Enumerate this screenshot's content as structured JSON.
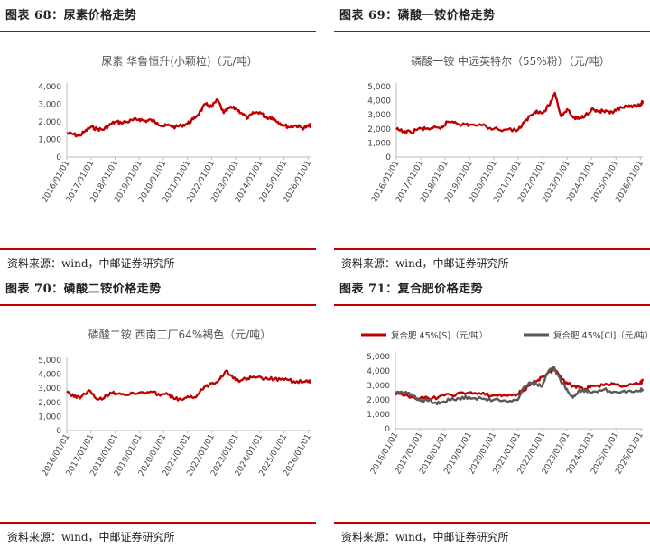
{
  "panels": [
    {
      "heading": "图表 68：尿素价格走势",
      "source": "资料来源：wind，中邮证券研究所"
    },
    {
      "heading": "图表 69：磷酸一铵价格走势",
      "source": "资料来源：wind，中邮证券研究所"
    },
    {
      "heading": "图表 70：磷酸二铵价格走势",
      "source": "资料来源：wind，中邮证券研究所"
    },
    {
      "heading": "图表 71：复合肥价格走势",
      "source": "资料来源：wind，中邮证券研究所"
    }
  ],
  "chart_data": [
    {
      "type": "line",
      "title": "尿素 华鲁恒升(小颗粒)（元/吨）",
      "xlabel": "",
      "ylabel": "",
      "ylim": [
        0,
        4000
      ],
      "yticks": [
        "0",
        "1,000",
        "2,000",
        "3,000",
        "4,000"
      ],
      "xticks": [
        "2016/01/01",
        "2017/01/01",
        "2018/01/01",
        "2019/01/01",
        "2020/01/01",
        "2021/01/01",
        "2022/01/01",
        "2023/01/01",
        "2024/01/01",
        "2025/01/01",
        "2026/01/01"
      ],
      "grid": false,
      "series": [
        {
          "color": "#c00000",
          "x": [
            2016.0,
            2016.25,
            2016.5,
            2016.75,
            2017.0,
            2017.25,
            2017.5,
            2017.75,
            2018.0,
            2018.25,
            2018.5,
            2018.75,
            2019.0,
            2019.25,
            2019.5,
            2019.75,
            2020.0,
            2020.25,
            2020.5,
            2020.75,
            2021.0,
            2021.25,
            2021.5,
            2021.75,
            2022.0,
            2022.25,
            2022.5,
            2022.75,
            2023.0,
            2023.25,
            2023.5,
            2023.75,
            2024.0,
            2024.25,
            2024.5,
            2024.75,
            2025.0,
            2025.25,
            2025.5,
            2025.75,
            2026.0,
            2026.1
          ],
          "values": [
            1350,
            1300,
            1200,
            1450,
            1700,
            1600,
            1550,
            1800,
            2000,
            1950,
            2000,
            2100,
            2150,
            2050,
            2100,
            1950,
            1750,
            1800,
            1700,
            1800,
            1900,
            2150,
            2550,
            3000,
            2850,
            3250,
            2500,
            2800,
            2750,
            2500,
            2200,
            2500,
            2550,
            2250,
            2250,
            2000,
            1800,
            1700,
            1800,
            1650,
            1750,
            1800
          ]
        }
      ]
    },
    {
      "type": "line",
      "title": "磷酸一铵 中远英特尔（55%粉）（元/吨）",
      "xlabel": "",
      "ylabel": "",
      "ylim": [
        0,
        5000
      ],
      "yticks": [
        "0",
        "1,000",
        "2,000",
        "3,000",
        "4,000",
        "5,000"
      ],
      "xticks": [
        "2016/01/01",
        "2017/01/01",
        "2018/01/01",
        "2019/01/01",
        "2020/01/01",
        "2021/01/01",
        "2022/01/01",
        "2023/01/01",
        "2024/01/01",
        "2025/01/01",
        "2026/01/01"
      ],
      "grid": false,
      "series": [
        {
          "color": "#c00000",
          "x": [
            2016.0,
            2016.3,
            2016.6,
            2016.9,
            2017.2,
            2017.5,
            2017.8,
            2018.1,
            2018.4,
            2018.7,
            2019.0,
            2019.5,
            2020.0,
            2020.5,
            2021.0,
            2021.25,
            2021.5,
            2021.75,
            2022.0,
            2022.25,
            2022.5,
            2022.75,
            2023.0,
            2023.25,
            2023.5,
            2023.75,
            2024.0,
            2024.25,
            2024.5,
            2024.75,
            2025.0,
            2025.25,
            2025.5,
            2025.75,
            2026.0,
            2026.1
          ],
          "values": [
            1950,
            1800,
            1750,
            2000,
            2000,
            2050,
            2000,
            2500,
            2500,
            2300,
            2300,
            2250,
            2000,
            1950,
            1950,
            2450,
            2950,
            3300,
            3100,
            3650,
            4550,
            2900,
            3400,
            2800,
            2700,
            3000,
            3400,
            3250,
            3250,
            3100,
            3300,
            3500,
            3550,
            3700,
            3600,
            4000
          ]
        }
      ]
    },
    {
      "type": "line",
      "title": "磷酸二铵 西南工厂64%褐色（元/吨）",
      "xlabel": "",
      "ylabel": "",
      "ylim": [
        0,
        5000
      ],
      "yticks": [
        "0",
        "1,000",
        "2,000",
        "3,000",
        "4,000",
        "5,000"
      ],
      "xticks": [
        "2016/01/01",
        "2017/01/01",
        "2018/01/01",
        "2019/01/01",
        "2020/01/01",
        "2021/01/01",
        "2022/01/01",
        "2023/01/01",
        "2024/01/01",
        "2025/01/01",
        "2026/01/01"
      ],
      "grid": false,
      "series": [
        {
          "color": "#c00000",
          "x": [
            2016.0,
            2016.3,
            2016.6,
            2016.9,
            2017.2,
            2017.5,
            2017.8,
            2018.2,
            2018.6,
            2019.0,
            2019.4,
            2019.8,
            2020.2,
            2020.5,
            2020.8,
            2021.1,
            2021.4,
            2021.7,
            2022.0,
            2022.3,
            2022.6,
            2022.9,
            2023.2,
            2023.5,
            2023.8,
            2024.2,
            2024.6,
            2025.0,
            2025.4,
            2025.8,
            2026.0,
            2026.1
          ],
          "values": [
            2800,
            2400,
            2400,
            2850,
            2300,
            2250,
            2700,
            2650,
            2550,
            2700,
            2700,
            2600,
            2550,
            2250,
            2200,
            2350,
            2500,
            3100,
            3350,
            3600,
            4250,
            3700,
            3550,
            3700,
            3750,
            3700,
            3650,
            3600,
            3500,
            3450,
            3450,
            3500
          ]
        }
      ]
    },
    {
      "type": "line",
      "title": "",
      "xlabel": "",
      "ylabel": "",
      "ylim": [
        0,
        5000
      ],
      "yticks": [
        "0",
        "1,000",
        "2,000",
        "3,000",
        "4,000",
        "5,000"
      ],
      "xticks": [
        "2016/01/01",
        "2017/01/01",
        "2018/01/01",
        "2019/01/01",
        "2020/01/01",
        "2021/01/01",
        "2022/01/01",
        "2023/01/01",
        "2024/01/01",
        "2025/01/01",
        "2026/01/01"
      ],
      "grid": false,
      "legend": "top",
      "series": [
        {
          "name": "复合肥 45%[S]（元/吨）",
          "color": "#c00000",
          "x": [
            2016.0,
            2016.5,
            2017.0,
            2017.5,
            2018.0,
            2018.5,
            2019.0,
            2019.5,
            2020.0,
            2020.5,
            2021.0,
            2021.25,
            2021.5,
            2021.75,
            2022.0,
            2022.25,
            2022.5,
            2022.75,
            2023.0,
            2023.25,
            2023.5,
            2023.75,
            2024.0,
            2024.5,
            2025.0,
            2025.5,
            2026.0,
            2026.1
          ],
          "values": [
            2350,
            2300,
            2100,
            2100,
            2300,
            2400,
            2500,
            2400,
            2300,
            2300,
            2400,
            2700,
            3000,
            3300,
            3600,
            3900,
            4100,
            3600,
            3200,
            2950,
            2900,
            2750,
            3000,
            3000,
            3050,
            3000,
            3150,
            3300
          ]
        },
        {
          "name": "复合肥 45%[Cl]（元/吨）",
          "color": "#595959",
          "x": [
            2016.0,
            2016.5,
            2016.7,
            2017.0,
            2017.3,
            2017.6,
            2017.9,
            2018.2,
            2018.6,
            2019.0,
            2019.5,
            2020.0,
            2020.5,
            2021.0,
            2021.25,
            2021.5,
            2021.75,
            2022.0,
            2022.25,
            2022.5,
            2022.75,
            2023.0,
            2023.25,
            2023.5,
            2023.75,
            2024.0,
            2024.5,
            2025.0,
            2025.5,
            2026.0,
            2026.1
          ],
          "values": [
            2500,
            2450,
            2400,
            1950,
            1950,
            1800,
            1850,
            2000,
            2100,
            2200,
            2100,
            2000,
            1950,
            2000,
            2900,
            3200,
            3100,
            2950,
            4000,
            4200,
            3300,
            2750,
            2150,
            2700,
            2650,
            2450,
            2700,
            2550,
            2600,
            2650,
            2750
          ]
        }
      ]
    }
  ]
}
